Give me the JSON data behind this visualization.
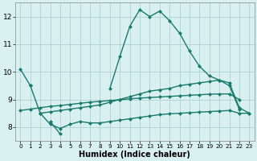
{
  "xlabel": "Humidex (Indice chaleur)",
  "background_color": "#d8f0f0",
  "grid_color": "#b0d0d0",
  "line_color": "#1a7a6e",
  "xlim": [
    -0.5,
    23.5
  ],
  "ylim": [
    7.5,
    12.5
  ],
  "yticks": [
    8,
    9,
    10,
    11,
    12
  ],
  "xticks": [
    0,
    1,
    2,
    3,
    4,
    5,
    6,
    7,
    8,
    9,
    10,
    11,
    12,
    13,
    14,
    15,
    16,
    17,
    18,
    19,
    20,
    21,
    22,
    23
  ],
  "series": {
    "line1_seg1": {
      "x": [
        0,
        1
      ],
      "y": [
        10.1,
        9.5
      ]
    },
    "line1_seg2": {
      "x": [
        3,
        4
      ],
      "y": [
        8.2,
        7.75
      ]
    },
    "line1_seg3": {
      "x": [
        9,
        10,
        11,
        12,
        13,
        14,
        15,
        16,
        17,
        18,
        19,
        20,
        21,
        22
      ],
      "y": [
        9.4,
        10.55,
        11.65,
        12.25,
        12.0,
        12.2,
        11.85,
        11.4,
        10.75,
        10.2,
        9.85,
        9.7,
        9.5,
        8.65
      ]
    },
    "line2": {
      "x": [
        1,
        2,
        3,
        4,
        5,
        6,
        7,
        8,
        9,
        10,
        11,
        12,
        13,
        14,
        15,
        16,
        17,
        18,
        19,
        20,
        21,
        22,
        23
      ],
      "y": [
        9.5,
        8.5,
        8.55,
        8.6,
        8.65,
        8.7,
        8.75,
        8.8,
        8.9,
        9.0,
        9.1,
        9.2,
        9.3,
        9.35,
        9.4,
        9.5,
        9.55,
        9.6,
        9.65,
        9.7,
        9.6,
        8.7,
        8.5
      ]
    },
    "line3": {
      "x": [
        2,
        3,
        4,
        5,
        6,
        7,
        8,
        9,
        10,
        11,
        12,
        13,
        14,
        15,
        16,
        17,
        18,
        19,
        20,
        21,
        22,
        23
      ],
      "y": [
        8.5,
        8.1,
        7.95,
        8.1,
        8.2,
        8.15,
        8.15,
        8.2,
        8.25,
        8.3,
        8.35,
        8.4,
        8.45,
        8.48,
        8.5,
        8.52,
        8.54,
        8.56,
        8.58,
        8.6,
        8.5,
        8.5
      ]
    },
    "line4": {
      "x": [
        0,
        1,
        2,
        3,
        4,
        5,
        6,
        7,
        8,
        9,
        10,
        11,
        12,
        13,
        14,
        15,
        16,
        17,
        18,
        19,
        20,
        21,
        22,
        23
      ],
      "y": [
        8.6,
        8.65,
        8.7,
        8.75,
        8.78,
        8.82,
        8.86,
        8.9,
        8.93,
        8.96,
        8.99,
        9.02,
        9.05,
        9.07,
        9.09,
        9.11,
        9.13,
        9.15,
        9.17,
        9.19,
        9.2,
        9.2,
        9.0,
        null
      ]
    }
  },
  "markersize": 2.5,
  "linewidth": 1.0
}
